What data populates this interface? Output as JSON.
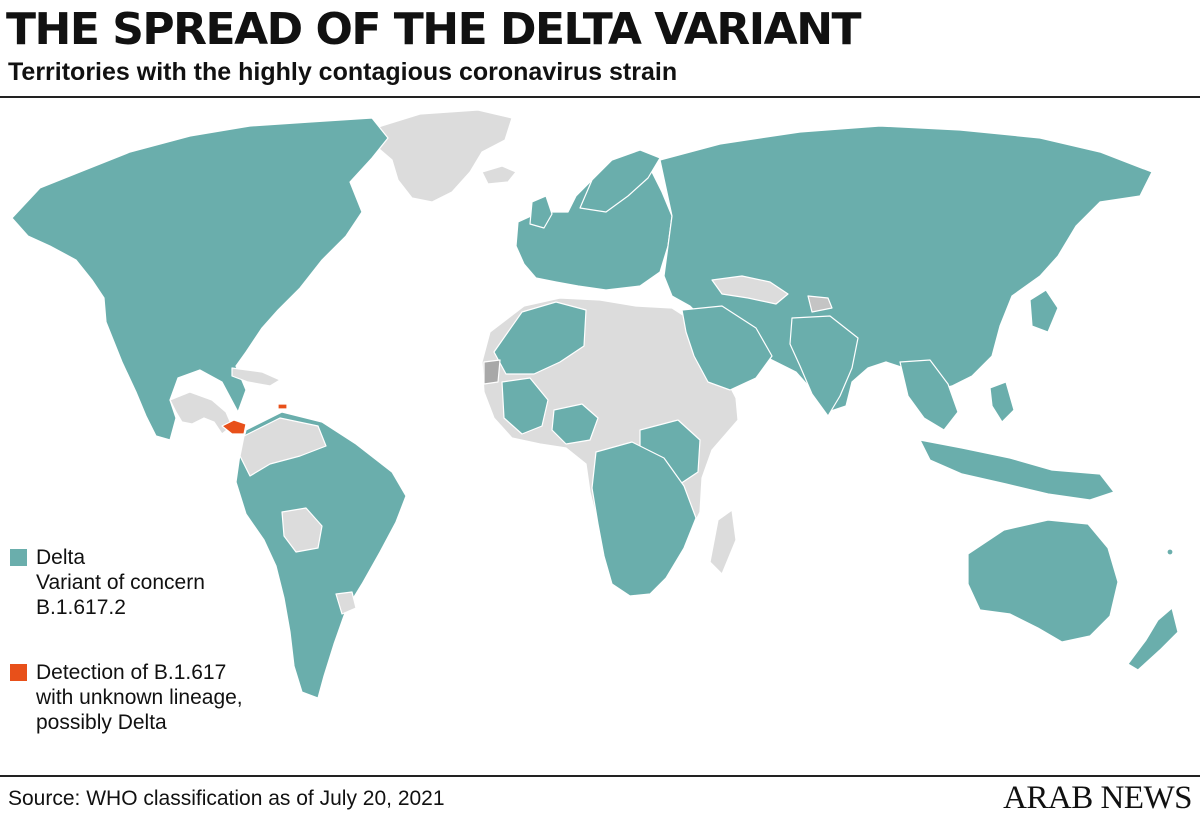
{
  "header": {
    "title": "THE SPREAD OF THE DELTA VARIANT",
    "subtitle": "Territories with the highly contagious coronavirus strain"
  },
  "legend": {
    "items": [
      {
        "label": "Delta\nVariant of concern\nB.1.617.2",
        "color": "#6aaeac"
      },
      {
        "label": "Detection of B.1.617\nwith unknown lineage,\npossibly Delta",
        "color": "#e8501a"
      }
    ]
  },
  "map": {
    "colors": {
      "delta": "#6aaeac",
      "no_data": "#dcdcdc",
      "unknown_lineage": "#e8501a",
      "border": "#ffffff"
    }
  },
  "footer": {
    "source": "Source: WHO classification as of July 20, 2021",
    "brand": "ARAB NEWS"
  }
}
